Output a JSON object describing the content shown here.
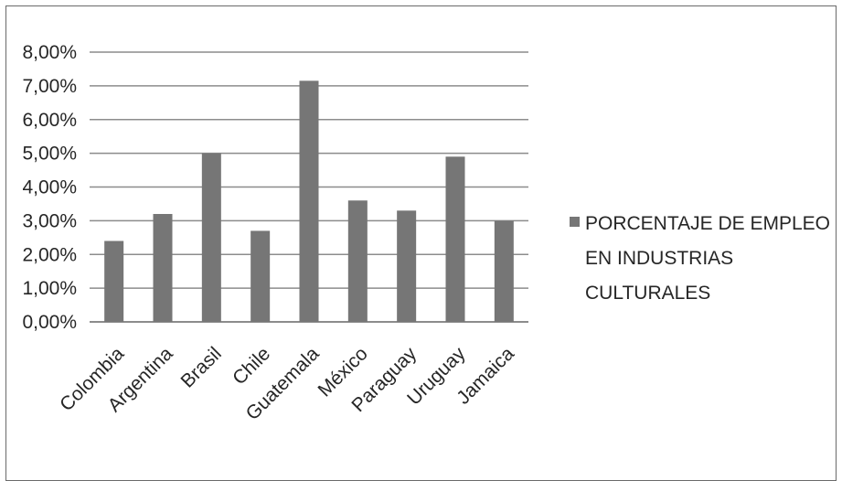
{
  "chart_data": {
    "type": "bar",
    "title": "",
    "xlabel": "",
    "ylabel": "",
    "categories": [
      "Colombia",
      "Argentina",
      "Brasil",
      "Chile",
      "Guatemala",
      "México",
      "Paraguay",
      "Uruguay",
      "Jamaica"
    ],
    "series": [
      {
        "name": "PORCENTAJE DE EMPLEO EN INDUSTRIAS CULTURALES",
        "values": [
          2.4,
          3.2,
          5.0,
          2.7,
          7.15,
          3.6,
          3.3,
          4.9,
          3.0
        ],
        "color": "#767676"
      }
    ],
    "ylim": [
      0,
      8
    ],
    "y_ticks": [
      "0,00%",
      "1,00%",
      "2,00%",
      "3,00%",
      "4,00%",
      "5,00%",
      "6,00%",
      "7,00%",
      "8,00%"
    ],
    "grid": true,
    "legend_position": "right",
    "legend_lines": [
      "PORCENTAJE DE EMPLEO",
      "EN INDUSTRIAS",
      "CULTURALES"
    ],
    "gridline_color": "#8c8c8c"
  }
}
